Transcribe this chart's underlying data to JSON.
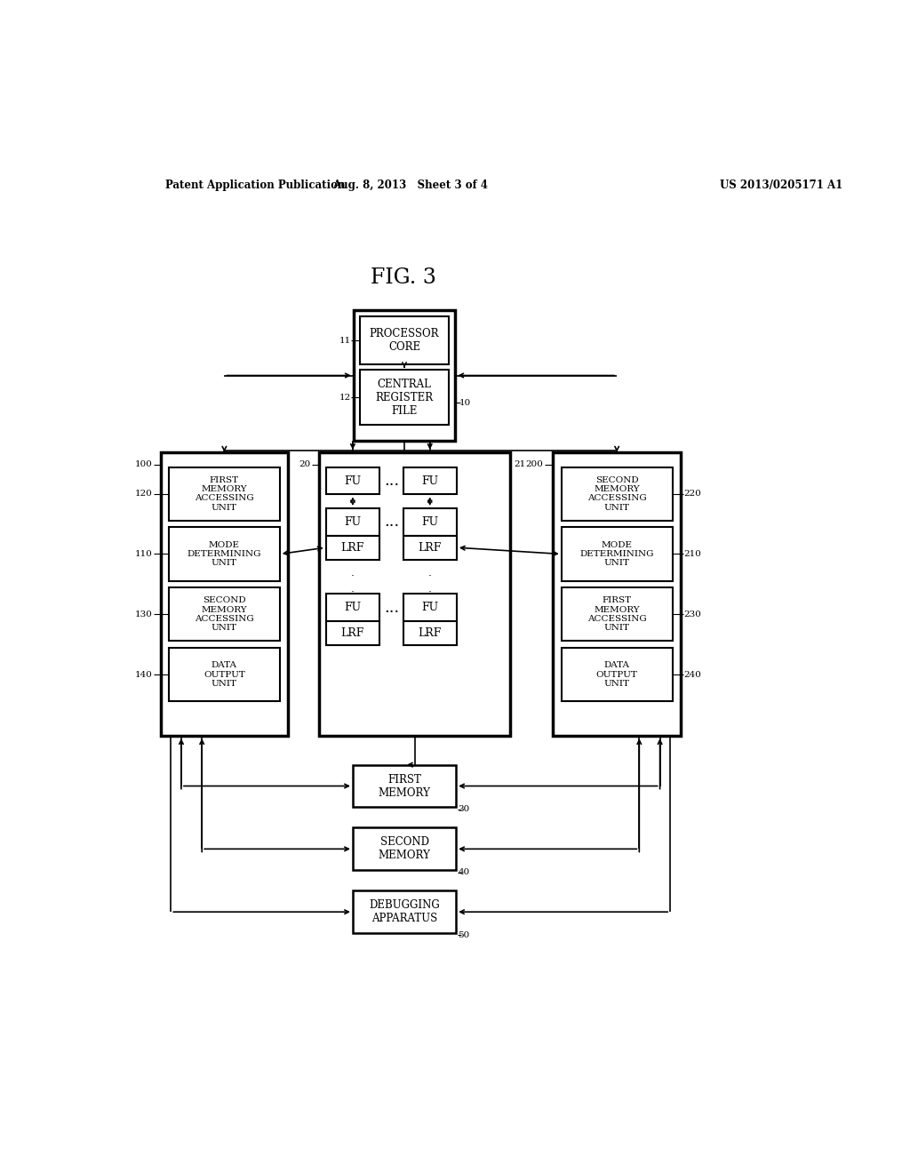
{
  "title": "FIG. 3",
  "header_left": "Patent Application Publication",
  "header_mid": "Aug. 8, 2013   Sheet 3 of 4",
  "header_right": "US 2013/0205171 A1",
  "bg_color": "#ffffff",
  "fg_color": "#000000"
}
